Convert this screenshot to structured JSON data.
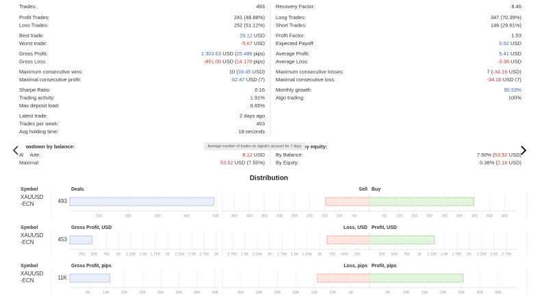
{
  "stats": {
    "left": [
      [
        {
          "label": "Trades:",
          "value": [
            "493"
          ]
        }
      ],
      [
        {
          "label": "Profit Trades:",
          "value": [
            "241 (48.88%)"
          ]
        },
        {
          "label": "Loss Trades:",
          "value": [
            "252 (51.12%)"
          ]
        }
      ],
      [
        {
          "label": "Best trade:",
          "value": [
            {
              "text": "29.12",
              "color": "#3a66c4"
            },
            " USD"
          ]
        },
        {
          "label": "Worst trade:",
          "value": [
            {
              "text": "-5.67",
              "color": "#d0312d"
            },
            " USD"
          ]
        }
      ],
      [
        {
          "label": "Gross Profit:",
          "value": [
            {
              "text": "1 303.63",
              "color": "#3a66c4"
            },
            " USD (",
            {
              "text": "25 488",
              "color": "#3a66c4"
            },
            " pips)"
          ]
        },
        {
          "label": "Gross Loss:",
          "value": [
            {
              "text": "-851.00",
              "color": "#d0312d"
            },
            " USD (",
            {
              "text": "14 170",
              "color": "#d0312d"
            },
            " pips)"
          ]
        }
      ],
      [
        {
          "label": "Maximum consecutive wins:",
          "value": [
            "10 (",
            {
              "text": "39.45",
              "color": "#3a66c4"
            },
            " USD)"
          ]
        },
        {
          "label": "Maximal consecutive profit:",
          "value": [
            {
              "text": "62.47",
              "color": "#3a66c4"
            },
            " USD (7)"
          ]
        }
      ],
      [
        {
          "label": "Sharpe Ratio:",
          "value": [
            "0.16"
          ]
        },
        {
          "label": "Trading activity:",
          "value": [
            "1.91%"
          ]
        },
        {
          "label": "Max deposit load:",
          "value": [
            "6.65%"
          ]
        }
      ],
      [
        {
          "label": "Latest trade:",
          "value": [
            "2 days ago"
          ]
        },
        {
          "label": "Trades per week:",
          "value": [
            "493"
          ]
        },
        {
          "label": "Avg holding time:",
          "value": [
            "18 seconds"
          ]
        }
      ]
    ],
    "right": [
      [
        {
          "label": "Recovery Factor:",
          "value": [
            "8.46"
          ]
        }
      ],
      [
        {
          "label": "Long Trades:",
          "value": [
            "347 (70.39%)"
          ]
        },
        {
          "label": "Short Trades:",
          "value": [
            "146 (29.61%)"
          ]
        }
      ],
      [
        {
          "label": "Profit Factor:",
          "value": [
            "1.53"
          ]
        },
        {
          "label": "Expected Payoff:",
          "value": [
            {
              "text": "0.92",
              "color": "#3a66c4"
            },
            " USD"
          ]
        }
      ],
      [
        {
          "label": "Average Profit:",
          "value": [
            {
              "text": "5.41",
              "color": "#3a66c4"
            },
            " USD"
          ]
        },
        {
          "label": "Average Loss:",
          "value": [
            {
              "text": "-3.38",
              "color": "#d0312d"
            },
            " USD"
          ]
        }
      ],
      [
        {
          "label": "Maximum consecutive losses:",
          "value": [
            "7 (",
            {
              "text": "-34.16",
              "color": "#d0312d"
            },
            " USD)"
          ]
        },
        {
          "label": "Maximal consecutive loss:",
          "value": [
            {
              "text": "-34.16",
              "color": "#d0312d"
            },
            " USD (7)"
          ]
        }
      ],
      [
        {
          "label": "Monthly growth:",
          "value": [
            {
              "text": "90.53%",
              "color": "#3a66c4"
            }
          ]
        },
        {
          "label": "Algo trading:",
          "value": [
            "100%"
          ]
        }
      ]
    ]
  },
  "drawdown": {
    "left": {
      "title": "Drawdown by balance:",
      "rows": [
        {
          "label": "Absolute:",
          "value": [
            {
              "text": "8.12",
              "color": "#d0312d"
            },
            " USD"
          ]
        },
        {
          "label": "Maximal:",
          "value": [
            {
              "text": "53.52",
              "color": "#d0312d"
            },
            " USD (7.50%)"
          ]
        }
      ]
    },
    "right": {
      "title": "Drawdown by equity:",
      "rows": [
        {
          "label": "By Balance:",
          "value": [
            "7.50% (",
            {
              "text": "53.52",
              "color": "#d0312d"
            },
            " USD)"
          ]
        },
        {
          "label": "By Equity:",
          "value": [
            "0.38% (",
            {
              "text": "2.16",
              "color": "#d0312d"
            },
            " USD)"
          ]
        }
      ]
    }
  },
  "tooltip": "Average number of trades on signal's account for 7 days",
  "distribution": {
    "title": "Distribution",
    "rows": [
      {
        "symbol_label": "Symbol",
        "symbol": "XAUUSD-ECN",
        "left": {
          "title": "Deals",
          "value": 493,
          "xlim": [
            0,
            510
          ],
          "ticks": [
            100,
            200,
            300,
            400,
            500
          ]
        },
        "right": {
          "left_title": "Sell",
          "right_title": "Buy",
          "left_value": 146,
          "right_value": 347,
          "lim": [
            0,
            490
          ],
          "ticks": [
            50,
            100,
            150,
            200,
            250,
            300,
            350,
            400,
            450
          ]
        }
      },
      {
        "symbol_label": "Symbol",
        "symbol": "XAUUSD-ECN",
        "left": {
          "title": "Gross Profit, USD",
          "value": 453,
          "xlim": [
            0,
            3050
          ],
          "ticks": [
            {
              "value": 250,
              "label": "250"
            },
            {
              "value": 500,
              "label": "500"
            },
            {
              "value": 750,
              "label": "750"
            },
            {
              "value": 1000,
              "label": "1K"
            },
            {
              "value": 1250,
              "label": "1.25K"
            },
            {
              "value": 1500,
              "label": "1.5K"
            },
            {
              "value": 1750,
              "label": "1.75K"
            },
            {
              "value": 2000,
              "label": "2K"
            },
            {
              "value": 2250,
              "label": "2.25K"
            },
            {
              "value": 2500,
              "label": "2.5K"
            },
            {
              "value": 2750,
              "label": "2.75K"
            },
            {
              "value": 3000,
              "label": "3K"
            }
          ]
        },
        "right": {
          "left_title": "Loss, USD",
          "right_title": "Profit, USD",
          "left_value": 851,
          "right_value": 1303.63,
          "lim": [
            0,
            2950
          ],
          "ticks": [
            {
              "value": 250,
              "label": "250"
            },
            {
              "value": 500,
              "label": "500"
            },
            {
              "value": 750,
              "label": "750"
            },
            {
              "value": 1000,
              "label": "1K"
            },
            {
              "value": 1250,
              "label": "1.25K"
            },
            {
              "value": 1500,
              "label": "1.5K"
            },
            {
              "value": 1750,
              "label": "1.75K"
            },
            {
              "value": 2000,
              "label": "2K"
            },
            {
              "value": 2250,
              "label": "2.25K"
            },
            {
              "value": 2500,
              "label": "2.5K"
            },
            {
              "value": 2750,
              "label": "2.75K"
            }
          ]
        }
      },
      {
        "symbol_label": "Symbol",
        "symbol": "XAUUSD-ECN",
        "left": {
          "title": "Gross Profit, pips",
          "value": 11000,
          "value_label": "11K",
          "xlim": [
            0,
            41000
          ],
          "ticks": [
            {
              "value": 5000,
              "label": "5K"
            },
            {
              "value": 10000,
              "label": "10K"
            },
            {
              "value": 15000,
              "label": "15K"
            },
            {
              "value": 20000,
              "label": "20K"
            },
            {
              "value": 25000,
              "label": "25K"
            },
            {
              "value": 30000,
              "label": "30K"
            },
            {
              "value": 35000,
              "label": "35K"
            },
            {
              "value": 40000,
              "label": "40K"
            }
          ]
        },
        "right": {
          "left_title": "Loss, pips",
          "right_title": "Profit, pips",
          "left_value": 14170,
          "right_value": 25488,
          "lim": [
            0,
            40000
          ],
          "ticks": [
            {
              "value": 5000,
              "label": "5K"
            },
            {
              "value": 10000,
              "label": "10K"
            },
            {
              "value": 15000,
              "label": "15K"
            },
            {
              "value": 20000,
              "label": "20K"
            },
            {
              "value": 25000,
              "label": "25K"
            },
            {
              "value": 30000,
              "label": "30K"
            },
            {
              "value": 35000,
              "label": "35K"
            }
          ]
        }
      }
    ]
  }
}
